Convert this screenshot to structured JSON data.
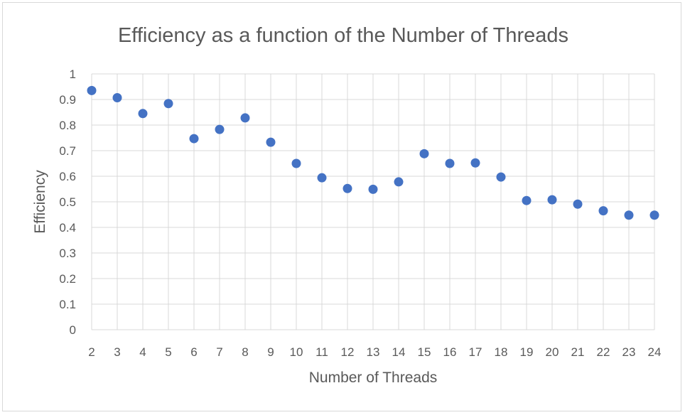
{
  "chart_data": {
    "type": "scatter",
    "title": "Efficiency as a function of the Number of Threads",
    "xlabel": "Number of Threads",
    "ylabel": "Efficiency",
    "x": [
      2,
      3,
      4,
      5,
      6,
      7,
      8,
      9,
      10,
      11,
      12,
      13,
      14,
      15,
      16,
      17,
      18,
      19,
      20,
      21,
      22,
      23,
      24
    ],
    "y": [
      0.935,
      0.907,
      0.845,
      0.884,
      0.747,
      0.783,
      0.828,
      0.733,
      0.65,
      0.594,
      0.552,
      0.549,
      0.578,
      0.688,
      0.65,
      0.652,
      0.597,
      0.505,
      0.508,
      0.491,
      0.465,
      0.448,
      0.448
    ],
    "xticks": [
      "2",
      "3",
      "4",
      "5",
      "6",
      "7",
      "8",
      "9",
      "10",
      "11",
      "12",
      "13",
      "14",
      "15",
      "16",
      "17",
      "18",
      "19",
      "20",
      "21",
      "22",
      "23",
      "24"
    ],
    "yticks": [
      "0",
      "0.1",
      "0.2",
      "0.3",
      "0.4",
      "0.5",
      "0.6",
      "0.7",
      "0.8",
      "0.9",
      "1"
    ],
    "ylim": [
      0,
      1
    ],
    "xlim": [
      2,
      24
    ],
    "grid": true,
    "legend": "none",
    "colors": {
      "marker": "#4472c4",
      "grid": "#d9d9d9",
      "text": "#595959"
    }
  }
}
